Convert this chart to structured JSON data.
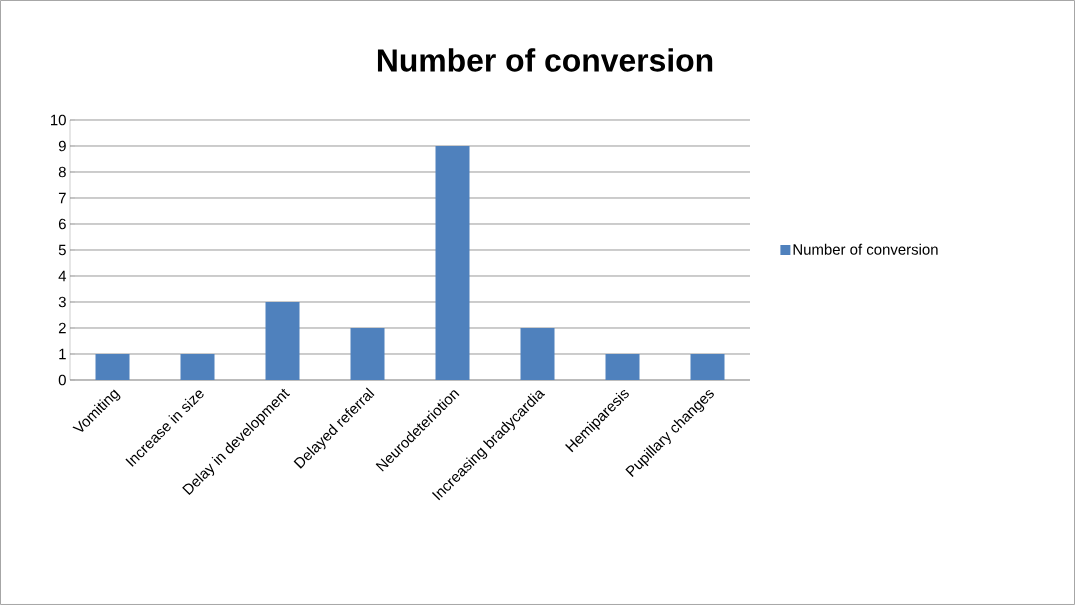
{
  "chart_data": {
    "type": "bar",
    "title": "Number of conversion",
    "categories": [
      "Vomiting",
      "Increase in size",
      "Delay in development",
      "Delayed referral",
      "Neurodeteriotion",
      "Increasing bradycardia",
      "Hemiparesis",
      "Pupillary changes"
    ],
    "series": [
      {
        "name": "Number of conversion",
        "color": "#4f81bd",
        "values": [
          1,
          1,
          3,
          2,
          9,
          2,
          1,
          1
        ]
      }
    ],
    "ylim": [
      0,
      10
    ],
    "yticks": [
      0,
      1,
      2,
      3,
      4,
      5,
      6,
      7,
      8,
      9,
      10
    ],
    "grid": "y",
    "legend": "right"
  }
}
